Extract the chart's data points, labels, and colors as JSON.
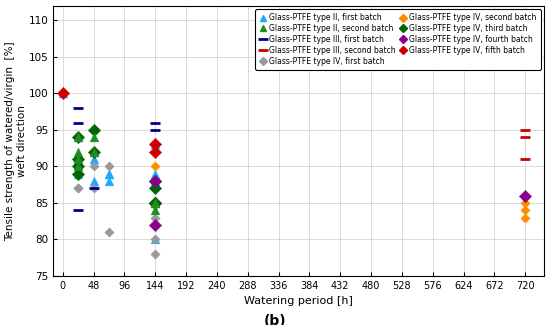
{
  "title": "(b)",
  "xlabel": "Watering period [h]",
  "ylabel": "Tensile strength of watered/virgin  [%]\nweft direction",
  "xlim": [
    -15,
    750
  ],
  "ylim": [
    75,
    112
  ],
  "xticks": [
    0,
    48,
    96,
    144,
    192,
    240,
    288,
    336,
    384,
    432,
    480,
    528,
    576,
    624,
    672,
    720
  ],
  "yticks": [
    75,
    80,
    85,
    90,
    95,
    100,
    105,
    110
  ],
  "series": [
    {
      "label": "Glass-PTFE type II, first batch",
      "color": "#1BAAFF",
      "marker": "^",
      "ms": 4,
      "x": [
        0,
        24,
        24,
        24,
        24,
        48,
        48,
        48,
        72,
        72,
        72,
        144,
        144,
        144,
        144
      ],
      "y": [
        100,
        94,
        91,
        90,
        89,
        92,
        91,
        88,
        89,
        89,
        88,
        93,
        89,
        88,
        80
      ]
    },
    {
      "label": "Glass-PTFE type III, first batch",
      "color": "#00008B",
      "marker": "s",
      "ms": 3,
      "x": [
        24,
        24,
        24,
        48,
        144,
        144
      ],
      "y": [
        98,
        96,
        84,
        87,
        96,
        95
      ]
    },
    {
      "label": "Glass-PTFE type IV, first batch",
      "color": "#999999",
      "marker": "D",
      "ms": 3,
      "x": [
        24,
        24,
        24,
        48,
        48,
        72,
        72,
        144,
        144,
        144,
        144,
        144
      ],
      "y": [
        94,
        87,
        87,
        90,
        87,
        90,
        81,
        83,
        80,
        88,
        88,
        78
      ]
    },
    {
      "label": "Glass-PTFE type IV, third batch",
      "color": "#006400",
      "marker": "D",
      "ms": 4,
      "x": [
        24,
        24,
        24,
        24,
        48,
        48,
        144,
        144,
        144,
        144,
        144
      ],
      "y": [
        94,
        91,
        90,
        89,
        95,
        92,
        85,
        85,
        88,
        87,
        85
      ]
    },
    {
      "label": "Glass-PTFE type IV, fifth batch",
      "color": "#CC0000",
      "marker": "D",
      "ms": 4,
      "x": [
        0,
        144,
        144
      ],
      "y": [
        100,
        93,
        92
      ]
    },
    {
      "label": "Glass-PTFE type II, second batch",
      "color": "#228B22",
      "marker": "^",
      "ms": 4,
      "x": [
        24,
        24,
        24,
        24,
        48,
        48,
        144,
        144,
        144
      ],
      "y": [
        94,
        92,
        91,
        90,
        94,
        92,
        85,
        85,
        84
      ]
    },
    {
      "label": "Glass-PTFE type III, second batch",
      "color": "#CC0000",
      "marker": "s",
      "ms": 3,
      "x": [
        720,
        720,
        720
      ],
      "y": [
        95,
        94,
        91
      ]
    },
    {
      "label": "Glass-PTFE type IV, second batch",
      "color": "#FF8C00",
      "marker": "D",
      "ms": 3,
      "x": [
        144,
        144,
        144,
        720,
        720,
        720
      ],
      "y": [
        90,
        88,
        88,
        85,
        84,
        83
      ]
    },
    {
      "label": "Glass-PTFE type IV, fourth batch",
      "color": "#8B008B",
      "marker": "D",
      "ms": 4,
      "x": [
        144,
        144,
        720
      ],
      "y": [
        88,
        82,
        86
      ]
    }
  ],
  "legend_order": [
    0,
    5,
    1,
    6,
    2,
    7,
    3,
    8,
    4
  ]
}
